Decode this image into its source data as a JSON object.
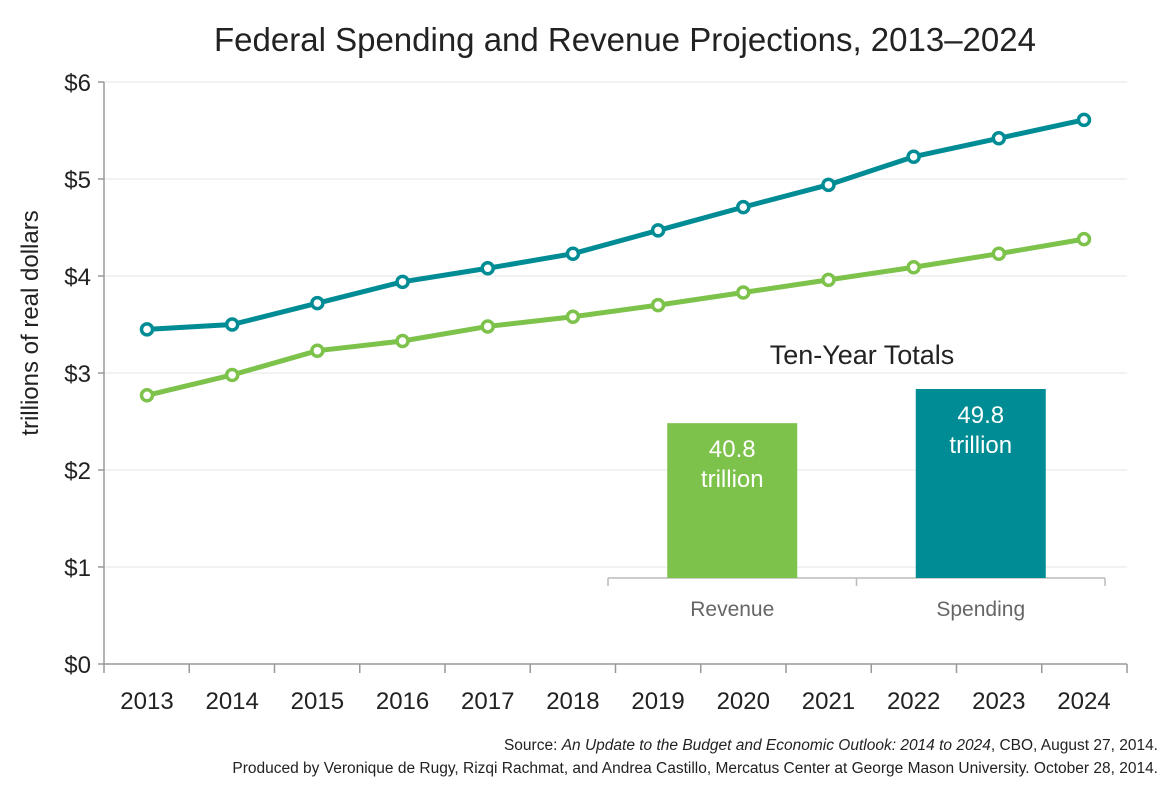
{
  "chart_data": {
    "type": "line",
    "title": "Federal Spending and Revenue Projections, 2013–2024",
    "ylabel": "trillions of real dollars",
    "ylim": [
      0,
      6
    ],
    "y_ticks": [
      "$0",
      "$1",
      "$2",
      "$3",
      "$4",
      "$5",
      "$6"
    ],
    "categories": [
      "2013",
      "2014",
      "2015",
      "2016",
      "2017",
      "2018",
      "2019",
      "2020",
      "2021",
      "2022",
      "2023",
      "2024"
    ],
    "grid": true,
    "series": [
      {
        "key": "spending",
        "color": "#008c95",
        "values": [
          3.45,
          3.5,
          3.72,
          3.94,
          4.08,
          4.23,
          4.47,
          4.71,
          4.94,
          5.23,
          5.42,
          5.61
        ]
      },
      {
        "key": "revenue",
        "color": "#7dc24b",
        "values": [
          2.77,
          2.98,
          3.23,
          3.33,
          3.48,
          3.58,
          3.7,
          3.83,
          3.96,
          4.09,
          4.23,
          4.38
        ]
      }
    ],
    "inset": {
      "type": "bar",
      "title": "Ten-Year Totals",
      "ylim": [
        0,
        60
      ],
      "bars": [
        {
          "category": "Revenue",
          "value": 40.8,
          "value_line1": "40.8",
          "value_line2": "trillion",
          "color": "#7dc24b"
        },
        {
          "category": "Spending",
          "value": 49.8,
          "value_line1": "49.8",
          "value_line2": "trillion",
          "color": "#008c95"
        }
      ]
    }
  },
  "footer": {
    "source_prefix": "Source: ",
    "source_title": "An Update to the Budget and Economic Outlook: 2014 to 2024",
    "source_suffix": ", CBO, August 27, 2014.",
    "credit": "Produced by Veronique de Rugy, Rizqi Rachmat, and Andrea Castillo, Mercatus Center at George Mason University. October 28, 2014."
  }
}
